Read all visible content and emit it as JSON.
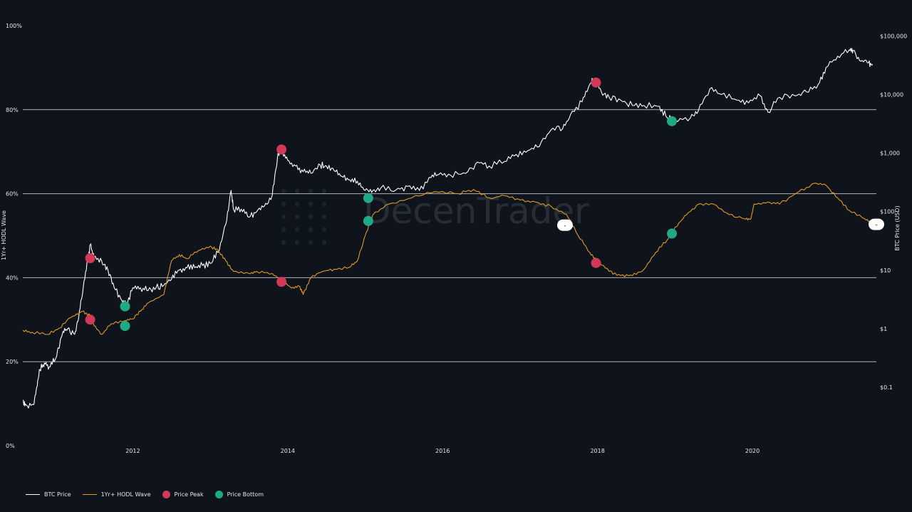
{
  "chart_data": {
    "type": "line",
    "title": "",
    "legend_placement": "bottom-left",
    "grid": "horizontal",
    "watermark": "DecenTrader",
    "x": {
      "range": [
        2010.58,
        2021.6
      ],
      "ticks": [
        2012,
        2014,
        2016,
        2018,
        2020
      ],
      "tick_labels": [
        "2012",
        "2014",
        "2016",
        "2018",
        "2020"
      ]
    },
    "y_left": {
      "label": "1Yr+ HODL Wave",
      "range": [
        0,
        100
      ],
      "unit": "%",
      "ticks": [
        0,
        20,
        40,
        60,
        80,
        100
      ],
      "tick_labels": [
        "0%",
        "20%",
        "40%",
        "60%",
        "80%",
        "100%"
      ]
    },
    "y_right": {
      "label": "BTC Price (USD)",
      "scale": "log",
      "range": [
        0.01,
        150000
      ],
      "ticks": [
        0.1,
        1,
        10,
        100,
        1000,
        10000,
        100000
      ],
      "tick_labels": [
        "$0.1",
        "$1",
        "$10",
        "$100",
        "$1,000",
        "$10,000",
        "$100,000"
      ]
    },
    "colors": {
      "background": "#0f131c",
      "price": "#ffffff",
      "hodl": "#e09a22",
      "peak": "#d03a58",
      "bottom": "#1fa986",
      "grid": "#cfcfcf"
    },
    "series": [
      {
        "name": "BTC Price",
        "axis": "right",
        "points": [
          [
            2010.58,
            0.06
          ],
          [
            2010.62,
            0.05
          ],
          [
            2010.72,
            0.05
          ],
          [
            2010.76,
            0.1
          ],
          [
            2010.8,
            0.2
          ],
          [
            2010.86,
            0.26
          ],
          [
            2010.92,
            0.22
          ],
          [
            2011.0,
            0.3
          ],
          [
            2011.1,
            0.9
          ],
          [
            2011.16,
            1.0
          ],
          [
            2011.25,
            0.8
          ],
          [
            2011.3,
            1.5
          ],
          [
            2011.36,
            5
          ],
          [
            2011.42,
            15
          ],
          [
            2011.45,
            27
          ],
          [
            2011.5,
            17
          ],
          [
            2011.6,
            14
          ],
          [
            2011.68,
            10
          ],
          [
            2011.76,
            5
          ],
          [
            2011.86,
            3
          ],
          [
            2011.92,
            2.5
          ],
          [
            2012.0,
            5
          ],
          [
            2012.1,
            5
          ],
          [
            2012.2,
            4.5
          ],
          [
            2012.3,
            5
          ],
          [
            2012.4,
            5.5
          ],
          [
            2012.5,
            7
          ],
          [
            2012.6,
            10
          ],
          [
            2012.7,
            11
          ],
          [
            2012.8,
            11
          ],
          [
            2012.9,
            12
          ],
          [
            2013.0,
            13
          ],
          [
            2013.1,
            20
          ],
          [
            2013.2,
            60
          ],
          [
            2013.27,
            230
          ],
          [
            2013.3,
            110
          ],
          [
            2013.4,
            110
          ],
          [
            2013.5,
            80
          ],
          [
            2013.6,
            100
          ],
          [
            2013.7,
            125
          ],
          [
            2013.8,
            190
          ],
          [
            2013.87,
            900
          ],
          [
            2013.92,
            1150
          ],
          [
            2014.0,
            750
          ],
          [
            2014.1,
            600
          ],
          [
            2014.2,
            480
          ],
          [
            2014.3,
            450
          ],
          [
            2014.42,
            620
          ],
          [
            2014.5,
            600
          ],
          [
            2014.6,
            500
          ],
          [
            2014.7,
            400
          ],
          [
            2014.8,
            350
          ],
          [
            2014.9,
            330
          ],
          [
            2015.0,
            230
          ],
          [
            2015.1,
            230
          ],
          [
            2015.2,
            250
          ],
          [
            2015.4,
            235
          ],
          [
            2015.55,
            270
          ],
          [
            2015.7,
            230
          ],
          [
            2015.85,
            380
          ],
          [
            2015.95,
            430
          ],
          [
            2016.1,
            420
          ],
          [
            2016.3,
            450
          ],
          [
            2016.45,
            700
          ],
          [
            2016.6,
            600
          ],
          [
            2016.8,
            720
          ],
          [
            2016.95,
            950
          ],
          [
            2017.1,
            1100
          ],
          [
            2017.25,
            1300
          ],
          [
            2017.4,
            2500
          ],
          [
            2017.55,
            2600
          ],
          [
            2017.65,
            4500
          ],
          [
            2017.8,
            7500
          ],
          [
            2017.9,
            15000
          ],
          [
            2017.96,
            19000
          ],
          [
            2018.05,
            11000
          ],
          [
            2018.15,
            9000
          ],
          [
            2018.3,
            8000
          ],
          [
            2018.45,
            6500
          ],
          [
            2018.6,
            6500
          ],
          [
            2018.8,
            6300
          ],
          [
            2018.9,
            4000
          ],
          [
            2019.0,
            3700
          ],
          [
            2019.2,
            4000
          ],
          [
            2019.3,
            5200
          ],
          [
            2019.45,
            12500
          ],
          [
            2019.6,
            10000
          ],
          [
            2019.8,
            8000
          ],
          [
            2019.95,
            7200
          ],
          [
            2020.1,
            9500
          ],
          [
            2020.2,
            5000
          ],
          [
            2020.35,
            9000
          ],
          [
            2020.55,
            9500
          ],
          [
            2020.7,
            11000
          ],
          [
            2020.85,
            15000
          ],
          [
            2020.95,
            29000
          ],
          [
            2021.1,
            45000
          ],
          [
            2021.25,
            58000
          ],
          [
            2021.3,
            57000
          ],
          [
            2021.4,
            37000
          ],
          [
            2021.5,
            35000
          ],
          [
            2021.55,
            33000
          ]
        ]
      },
      {
        "name": "1Yr+ HODL Wave",
        "axis": "left",
        "points": [
          [
            2010.58,
            27.5
          ],
          [
            2010.7,
            27.0
          ],
          [
            2010.9,
            26.5
          ],
          [
            2011.05,
            28
          ],
          [
            2011.2,
            30.5
          ],
          [
            2011.35,
            32
          ],
          [
            2011.45,
            31
          ],
          [
            2011.5,
            28.5
          ],
          [
            2011.6,
            26.5
          ],
          [
            2011.72,
            29
          ],
          [
            2011.9,
            29.8
          ],
          [
            2012.0,
            30.2
          ],
          [
            2012.1,
            32
          ],
          [
            2012.2,
            34
          ],
          [
            2012.4,
            36
          ],
          [
            2012.5,
            44
          ],
          [
            2012.6,
            45.5
          ],
          [
            2012.7,
            44.5
          ],
          [
            2012.85,
            46.5
          ],
          [
            2013.0,
            47.5
          ],
          [
            2013.1,
            46.5
          ],
          [
            2013.2,
            44
          ],
          [
            2013.3,
            41.5
          ],
          [
            2013.5,
            41
          ],
          [
            2013.6,
            41.5
          ],
          [
            2013.8,
            41
          ],
          [
            2013.95,
            39
          ],
          [
            2014.05,
            37.5
          ],
          [
            2014.15,
            38
          ],
          [
            2014.2,
            36
          ],
          [
            2014.3,
            40
          ],
          [
            2014.45,
            41.5
          ],
          [
            2014.6,
            42
          ],
          [
            2014.8,
            42.5
          ],
          [
            2014.9,
            44
          ],
          [
            2015.0,
            50
          ],
          [
            2015.1,
            55
          ],
          [
            2015.3,
            57.5
          ],
          [
            2015.6,
            59
          ],
          [
            2015.9,
            60.5
          ],
          [
            2016.2,
            60
          ],
          [
            2016.4,
            61
          ],
          [
            2016.6,
            59
          ],
          [
            2016.8,
            59.5
          ],
          [
            2017.0,
            58.5
          ],
          [
            2017.2,
            58
          ],
          [
            2017.4,
            57
          ],
          [
            2017.6,
            55
          ],
          [
            2017.75,
            50
          ],
          [
            2017.9,
            46
          ],
          [
            2018.0,
            44
          ],
          [
            2018.15,
            41.5
          ],
          [
            2018.3,
            40.5
          ],
          [
            2018.45,
            40.5
          ],
          [
            2018.6,
            42
          ],
          [
            2018.75,
            46
          ],
          [
            2018.9,
            49
          ],
          [
            2019.0,
            52
          ],
          [
            2019.15,
            55
          ],
          [
            2019.3,
            57.5
          ],
          [
            2019.5,
            57.5
          ],
          [
            2019.7,
            55
          ],
          [
            2019.9,
            54
          ],
          [
            2019.98,
            54
          ],
          [
            2020.02,
            57.5
          ],
          [
            2020.2,
            58
          ],
          [
            2020.35,
            57.5
          ],
          [
            2020.6,
            60.5
          ],
          [
            2020.8,
            62.5
          ],
          [
            2020.95,
            62
          ],
          [
            2021.1,
            59
          ],
          [
            2021.25,
            56
          ],
          [
            2021.45,
            54
          ],
          [
            2021.55,
            53
          ]
        ]
      }
    ],
    "markers": {
      "price_peak": [
        {
          "x": 2011.45,
          "axis": "right",
          "y": 16
        },
        {
          "x": 2013.92,
          "axis": "right",
          "y": 1150
        },
        {
          "x": 2017.98,
          "axis": "right",
          "y": 16000
        },
        {
          "x": 2011.45,
          "axis": "left",
          "y": 30
        },
        {
          "x": 2013.92,
          "axis": "left",
          "y": 39
        },
        {
          "x": 2017.98,
          "axis": "left",
          "y": 43.5
        }
      ],
      "price_bottom": [
        {
          "x": 2011.9,
          "axis": "right",
          "y": 2.4
        },
        {
          "x": 2015.04,
          "axis": "right",
          "y": 170
        },
        {
          "x": 2018.96,
          "axis": "right",
          "y": 3500
        },
        {
          "x": 2011.9,
          "axis": "left",
          "y": 28.5
        },
        {
          "x": 2015.04,
          "axis": "left",
          "y": 53.5
        },
        {
          "x": 2018.96,
          "axis": "left",
          "y": 50.5
        }
      ]
    },
    "annotation_pills": [
      {
        "x": 2017.58,
        "axis": "left",
        "y": 52.5,
        "text": "-"
      },
      {
        "x": 2021.6,
        "axis": "left",
        "y": 52.7,
        "text": "-"
      }
    ],
    "legend": [
      {
        "label": "BTC Price",
        "kind": "line",
        "color": "#ffffff"
      },
      {
        "label": "1Yr+ HODL Wave",
        "kind": "line",
        "color": "#e09a22"
      },
      {
        "label": "Price Peak",
        "kind": "dot",
        "color": "#d03a58"
      },
      {
        "label": "Price Bottom",
        "kind": "dot",
        "color": "#1fa986"
      }
    ]
  }
}
